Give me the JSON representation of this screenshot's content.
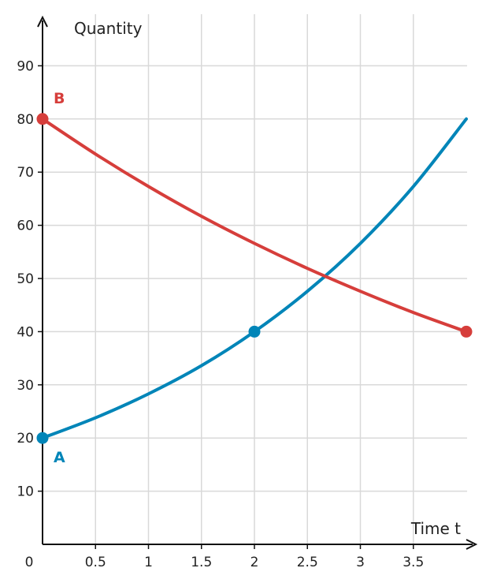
{
  "chart_data": {
    "type": "line",
    "xlabel": "Time t",
    "ylabel": "Quantity",
    "origin_label": "0",
    "xlim": [
      0,
      4
    ],
    "ylim": [
      0,
      100
    ],
    "x_ticks": [
      0.5,
      1,
      1.5,
      2,
      2.5,
      3,
      3.5
    ],
    "x_tick_labels": [
      "0.5",
      "1",
      "1.5",
      "2",
      "2.5",
      "3",
      "3.5"
    ],
    "y_ticks": [
      10,
      20,
      30,
      40,
      50,
      60,
      70,
      80,
      90
    ],
    "y_tick_labels": [
      "10",
      "20",
      "30",
      "40",
      "50",
      "60",
      "70",
      "80",
      "90"
    ],
    "grid": true,
    "series": [
      {
        "name": "A",
        "color": "#0085b8",
        "x": [
          0,
          0.5,
          1,
          1.5,
          2,
          2.5,
          3,
          3.5,
          4
        ],
        "y": [
          20,
          23.8,
          28.3,
          33.6,
          40,
          47.6,
          56.6,
          67.3,
          80
        ],
        "markers": [
          [
            0,
            20
          ],
          [
            2,
            40
          ]
        ]
      },
      {
        "name": "B",
        "color": "#d63e3b",
        "x": [
          0,
          0.5,
          1,
          1.5,
          2,
          2.5,
          3,
          3.5,
          4
        ],
        "y": [
          80,
          73.4,
          67.3,
          61.7,
          56.6,
          51.9,
          47.6,
          43.6,
          40
        ],
        "markers": [
          [
            0,
            80
          ],
          [
            4,
            40
          ]
        ]
      }
    ]
  }
}
